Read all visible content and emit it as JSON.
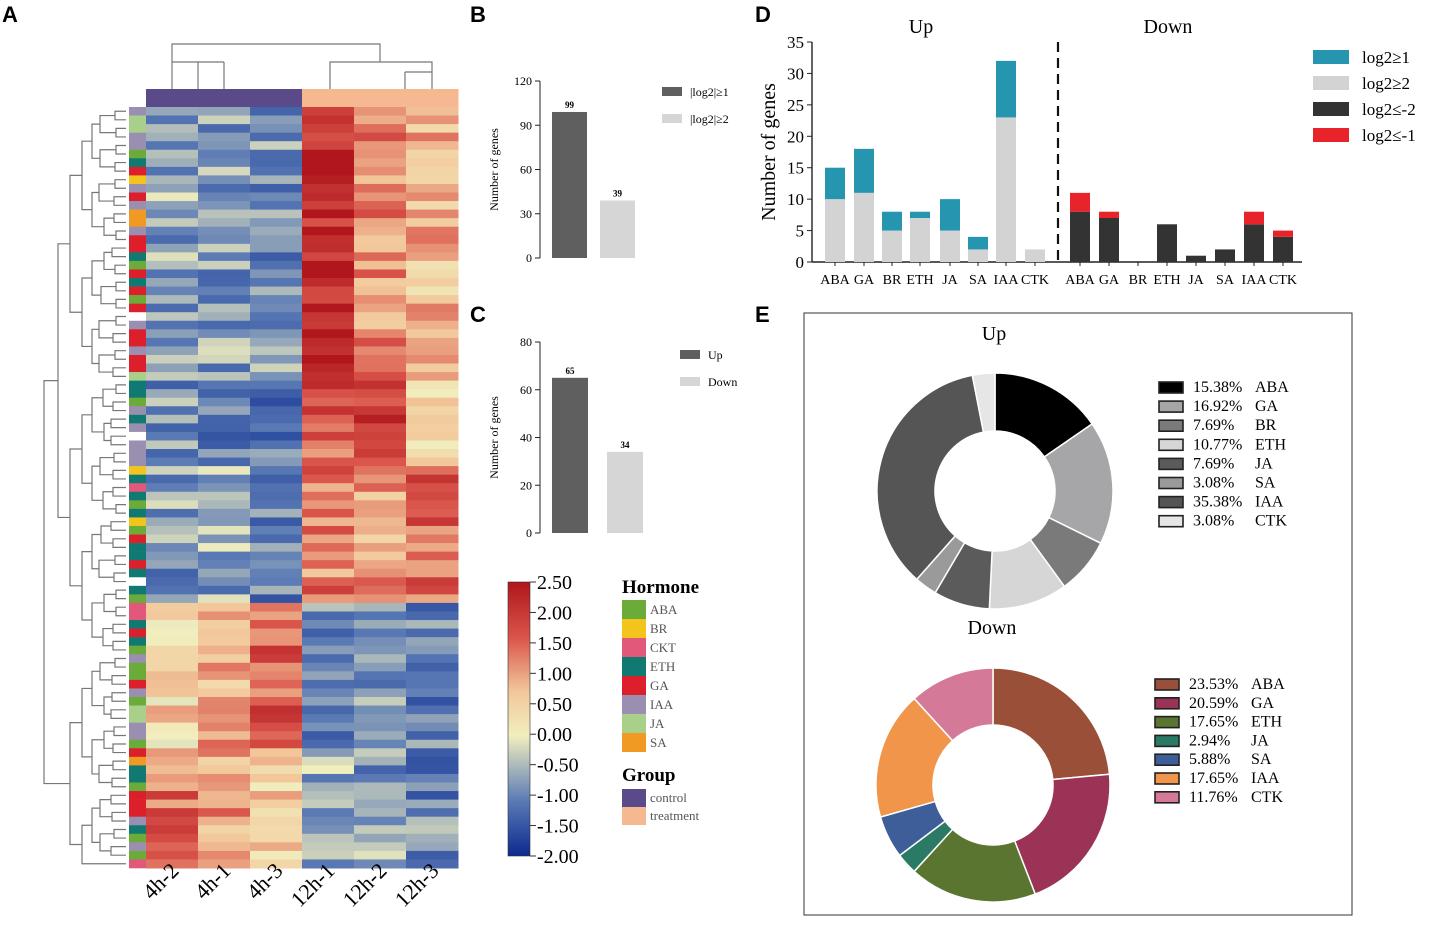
{
  "panel_labels": [
    "A",
    "B",
    "C",
    "D",
    "E"
  ],
  "chart_data": [
    {
      "type": "heatmap",
      "panel": "A",
      "columns": [
        "4h-2",
        "4h-1",
        "4h-3",
        "12h-1",
        "12h-2",
        "12h-3"
      ],
      "group_colors": {
        "control": "#5a4a8a",
        "treatment": "#f5b890"
      },
      "column_groups": [
        "control",
        "control",
        "control",
        "treatment",
        "treatment",
        "treatment"
      ],
      "colorbar": {
        "min": -2.0,
        "max": 2.5,
        "ticks": [
          "2.50",
          "2.00",
          "1.50",
          "1.00",
          "0.50",
          "0.00",
          "-0.50",
          "-1.00",
          "-1.50",
          "-2.00"
        ]
      },
      "hormone_legend_title": "Hormone",
      "hormones": [
        {
          "name": "ABA",
          "color": "#6aab3a"
        },
        {
          "name": "BR",
          "color": "#f2c41c"
        },
        {
          "name": "CKT",
          "color": "#e2587a"
        },
        {
          "name": "ETH",
          "color": "#107a72"
        },
        {
          "name": "GA",
          "color": "#dc1f2a"
        },
        {
          "name": "IAA",
          "color": "#9a8fb0"
        },
        {
          "name": "JA",
          "color": "#a8d08a"
        },
        {
          "name": "SA",
          "color": "#f09a24"
        }
      ],
      "group_legend_title": "Group",
      "groups": [
        {
          "name": "control",
          "color": "#5a4a8a"
        },
        {
          "name": "treatment",
          "color": "#f5b890"
        }
      ],
      "row_hormones": [
        "IAA",
        "JA",
        "JA",
        "IAA",
        "IAA",
        "ABA",
        "ETH",
        "GA",
        "BR",
        "IAA",
        "GA",
        "IAA",
        "SA",
        "SA",
        "IAA",
        "GA",
        "GA",
        "ETH",
        "ABA",
        "GA",
        "ETH",
        "GA",
        "ABA",
        "GA",
        "",
        "IAA",
        "GA",
        "GA",
        "IAA",
        "GA",
        "GA",
        "JA",
        "ETH",
        "ETH",
        "ABA",
        "IAA",
        "ETH",
        "IAA",
        "",
        "IAA",
        "IAA",
        "IAA",
        "BR",
        "ETH",
        "CKT",
        "ETH",
        "ABA",
        "ETH",
        "BR",
        "ABA",
        "GA",
        "ETH",
        "ETH",
        "GA",
        "ETH",
        "",
        "ETH",
        "ABA",
        "CKT",
        "CKT",
        "ETH",
        "GA",
        "ETH",
        "ABA",
        "IAA",
        "ABA",
        "ABA",
        "GA",
        "IAA",
        "ABA",
        "JA",
        "JA",
        "IAA",
        "IAA",
        "ABA",
        "GA",
        "SA",
        "ETH",
        "ETH",
        "ABA",
        "GA",
        "GA",
        "GA",
        "IAA",
        "ETH",
        "ABA",
        "IAA",
        "ABA",
        "CKT"
      ],
      "row_blocks": [
        {
          "rows": 32,
          "values": [
            -0.6,
            -0.7,
            -0.8,
            2.2,
            1.2,
            0.8
          ]
        },
        {
          "rows": 10,
          "values": [
            -0.8,
            -0.9,
            -1.0,
            1.6,
            1.9,
            0.6
          ]
        },
        {
          "rows": 16,
          "values": [
            -0.7,
            -0.6,
            -0.9,
            1.3,
            1.0,
            1.5
          ]
        },
        {
          "rows": 17,
          "values": [
            0.5,
            0.9,
            1.6,
            -0.9,
            -0.6,
            -1.0
          ]
        },
        {
          "rows": 14,
          "values": [
            1.4,
            1.1,
            0.6,
            -0.6,
            -0.7,
            -0.9
          ]
        }
      ]
    },
    {
      "type": "bar",
      "panel": "B",
      "categories": [
        "|log2|≥1",
        "|log2|≥2"
      ],
      "values": [
        99,
        39
      ],
      "ylabel": "Number of genes",
      "ylim": [
        0,
        120
      ],
      "yticks": [
        0,
        30,
        60,
        90,
        120
      ],
      "colors": [
        "#5f5f5f",
        "#d6d6d6"
      ],
      "legend": [
        "|log2|≥1",
        "|log2|≥2"
      ]
    },
    {
      "type": "bar",
      "panel": "C",
      "categories": [
        "Up",
        "Down"
      ],
      "values": [
        65,
        34
      ],
      "ylabel": "Number of genes",
      "ylim": [
        0,
        80
      ],
      "yticks": [
        0,
        20,
        40,
        60,
        80
      ],
      "colors": [
        "#5f5f5f",
        "#d6d6d6"
      ],
      "legend": [
        "Up",
        "Down"
      ]
    },
    {
      "type": "bar",
      "panel": "D",
      "stacked": true,
      "ylabel": "Number of genes",
      "ylim": [
        0,
        35
      ],
      "yticks": [
        0,
        5,
        10,
        15,
        20,
        25,
        30,
        35
      ],
      "groups": [
        {
          "title": "Up",
          "categories": [
            "ABA",
            "GA",
            "BR",
            "ETH",
            "JA",
            "SA",
            "IAA",
            "CTK"
          ],
          "series": [
            {
              "name": "log2≥2",
              "color": "#d3d3d3",
              "values": [
                10,
                11,
                5,
                7,
                5,
                2,
                23,
                2
              ]
            },
            {
              "name": "log2≥1",
              "color": "#2696b0",
              "values": [
                5,
                7,
                3,
                1,
                5,
                2,
                9,
                0
              ]
            }
          ]
        },
        {
          "title": "Down",
          "categories": [
            "ABA",
            "GA",
            "BR",
            "ETH",
            "JA",
            "SA",
            "IAA",
            "CTK"
          ],
          "series": [
            {
              "name": "log2≤-2",
              "color": "#333333",
              "values": [
                8,
                7,
                0,
                6,
                1,
                2,
                6,
                4
              ]
            },
            {
              "name": "log2≤-1",
              "color": "#e8232a",
              "values": [
                3,
                1,
                0,
                0,
                0,
                0,
                2,
                1
              ]
            }
          ]
        }
      ],
      "legend": [
        {
          "name": "log2≥1",
          "color": "#2696b0"
        },
        {
          "name": "log2≥2",
          "color": "#d3d3d3"
        },
        {
          "name": "log2≤-2",
          "color": "#333333"
        },
        {
          "name": "log2≤-1",
          "color": "#e8232a"
        }
      ]
    },
    {
      "type": "pie",
      "panel": "E",
      "donut": true,
      "title": "Up",
      "slices": [
        {
          "label": "ABA",
          "value": 15.38,
          "text": "15.38%",
          "color": "#000000"
        },
        {
          "label": "GA",
          "value": 16.92,
          "text": "16.92%",
          "color": "#a6a6a8"
        },
        {
          "label": "BR",
          "value": 7.69,
          "text": "7.69%",
          "color": "#7a7a7a"
        },
        {
          "label": "ETH",
          "value": 10.77,
          "text": "10.77%",
          "color": "#d6d6d6"
        },
        {
          "label": "JA",
          "value": 7.69,
          "text": "7.69%",
          "color": "#5b5b5b"
        },
        {
          "label": "SA",
          "value": 3.08,
          "text": "3.08%",
          "color": "#9a9a9a"
        },
        {
          "label": "IAA",
          "value": 35.38,
          "text": "35.38%",
          "color": "#555555"
        },
        {
          "label": "CTK",
          "value": 3.08,
          "text": "3.08%",
          "color": "#e6e6e6"
        }
      ]
    },
    {
      "type": "pie",
      "panel": "E",
      "donut": true,
      "title": "Down",
      "slices": [
        {
          "label": "ABA",
          "value": 23.53,
          "text": "23.53%",
          "color": "#9a4f38"
        },
        {
          "label": "GA",
          "value": 20.59,
          "text": "20.59%",
          "color": "#9a3355"
        },
        {
          "label": "ETH",
          "value": 17.65,
          "text": "17.65%",
          "color": "#5a7530"
        },
        {
          "label": "JA",
          "value": 2.94,
          "text": "2.94%",
          "color": "#2a7a65"
        },
        {
          "label": "SA",
          "value": 5.88,
          "text": "5.88%",
          "color": "#3e5e9a"
        },
        {
          "label": "IAA",
          "value": 17.65,
          "text": "17.65%",
          "color": "#f0954a"
        },
        {
          "label": "CTK",
          "value": 11.76,
          "text": "11.76%",
          "color": "#d47a98"
        }
      ]
    }
  ]
}
